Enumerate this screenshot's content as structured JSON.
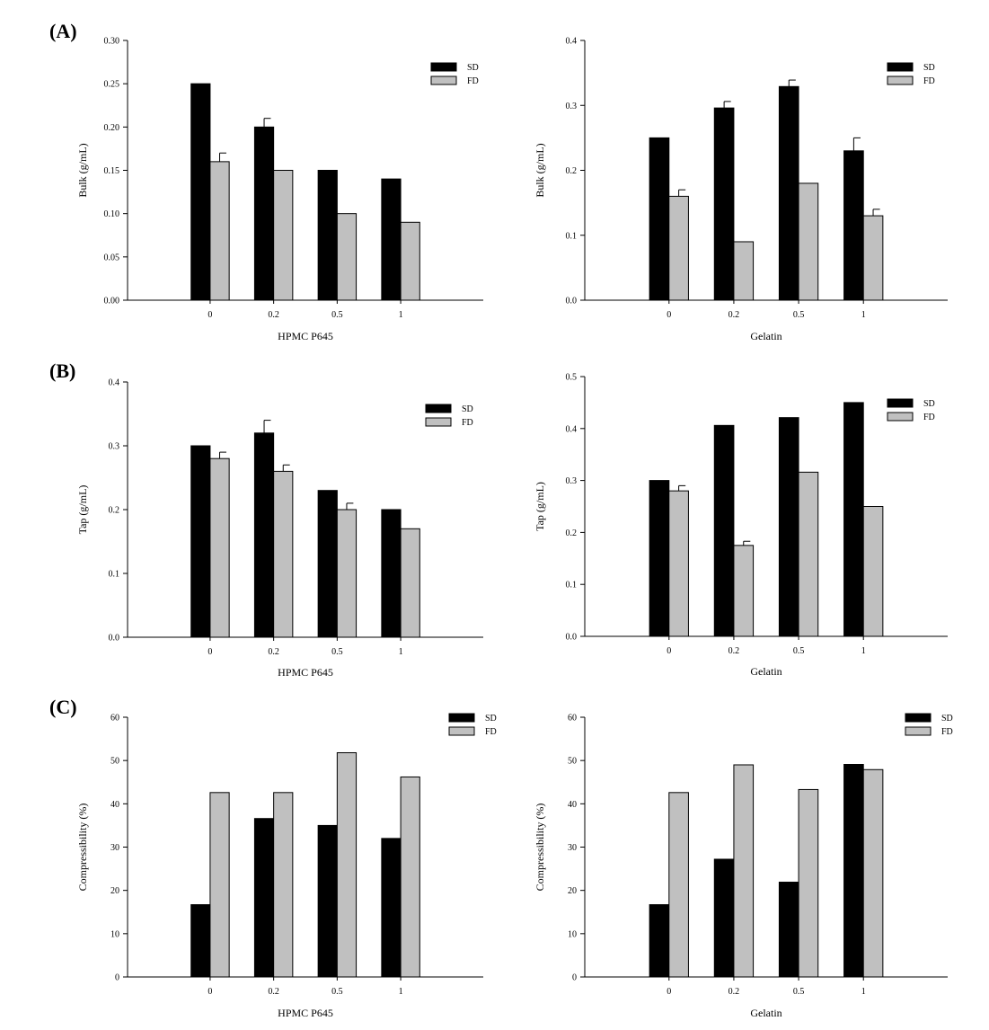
{
  "panel_labels": [
    "(A)",
    "(B)",
    "(C)"
  ],
  "legend": {
    "sd": "SD",
    "fd": "FD"
  },
  "colors": {
    "sd": "#000000",
    "fd": "#c0c0c0",
    "axis": "#000000"
  },
  "chart_data": [
    {
      "id": "A-hpmc",
      "type": "bar",
      "title": "",
      "xlabel": "HPMC P645",
      "ylabel": "Bulk (g/mL)",
      "categories": [
        "0",
        "0.2",
        "0.5",
        "1"
      ],
      "ylim": [
        0,
        0.3
      ],
      "yticks": [
        0,
        0.05,
        0.1,
        0.15,
        0.2,
        0.25,
        0.3
      ],
      "ydecimals": 2,
      "series": [
        {
          "name": "SD",
          "values": [
            0.25,
            0.2,
            0.15,
            0.14
          ],
          "errors": [
            0,
            0.01,
            0,
            0
          ]
        },
        {
          "name": "FD",
          "values": [
            0.16,
            0.15,
            0.1,
            0.09
          ],
          "errors": [
            0.01,
            0,
            0,
            0
          ]
        }
      ]
    },
    {
      "id": "A-gelatin",
      "type": "bar",
      "title": "",
      "xlabel": "Gelatin",
      "ylabel": "Bulk (g/mL)",
      "categories": [
        "0",
        "0.2",
        "0.5",
        "1"
      ],
      "ylim": [
        0,
        0.4
      ],
      "yticks": [
        0,
        0.1,
        0.2,
        0.3,
        0.4
      ],
      "ydecimals": 1,
      "series": [
        {
          "name": "SD",
          "values": [
            0.25,
            0.296,
            0.329,
            0.23
          ],
          "errors": [
            0,
            0.01,
            0.01,
            0.02
          ]
        },
        {
          "name": "FD",
          "values": [
            0.16,
            0.09,
            0.18,
            0.13
          ],
          "errors": [
            0.01,
            0,
            0,
            0.01
          ]
        }
      ]
    },
    {
      "id": "B-hpmc",
      "type": "bar",
      "title": "",
      "xlabel": "HPMC P645",
      "ylabel": "Tap (g/mL)",
      "categories": [
        "0",
        "0.2",
        "0.5",
        "1"
      ],
      "ylim": [
        0,
        0.4
      ],
      "yticks": [
        0,
        0.1,
        0.2,
        0.3,
        0.4
      ],
      "ydecimals": 1,
      "series": [
        {
          "name": "SD",
          "values": [
            0.3,
            0.32,
            0.23,
            0.2
          ],
          "errors": [
            0,
            0.02,
            0,
            0
          ]
        },
        {
          "name": "FD",
          "values": [
            0.28,
            0.26,
            0.2,
            0.17
          ],
          "errors": [
            0.01,
            0.01,
            0.01,
            0
          ]
        }
      ]
    },
    {
      "id": "B-gelatin",
      "type": "bar",
      "title": "",
      "xlabel": "Gelatin",
      "ylabel": "Tap (g/mL)",
      "categories": [
        "0",
        "0.2",
        "0.5",
        "1"
      ],
      "ylim": [
        0,
        0.5
      ],
      "yticks": [
        0,
        0.1,
        0.2,
        0.3,
        0.4,
        0.5
      ],
      "ydecimals": 1,
      "series": [
        {
          "name": "SD",
          "values": [
            0.3,
            0.406,
            0.421,
            0.45
          ],
          "errors": [
            0,
            0,
            0,
            0
          ]
        },
        {
          "name": "FD",
          "values": [
            0.28,
            0.175,
            0.316,
            0.25
          ],
          "errors": [
            0.01,
            0.008,
            0,
            0
          ]
        }
      ]
    },
    {
      "id": "C-hpmc",
      "type": "bar",
      "title": "",
      "xlabel": "HPMC P645",
      "ylabel": "Compressibility (%)",
      "categories": [
        "0",
        "0.2",
        "0.5",
        "1"
      ],
      "ylim": [
        0,
        60
      ],
      "yticks": [
        0,
        10,
        20,
        30,
        40,
        50,
        60
      ],
      "ydecimals": 0,
      "series": [
        {
          "name": "SD",
          "values": [
            16.7,
            36.6,
            35,
            32
          ],
          "errors": [
            0,
            0,
            0,
            0
          ]
        },
        {
          "name": "FD",
          "values": [
            42.6,
            42.6,
            51.8,
            46.2
          ],
          "errors": [
            0,
            0,
            0,
            0
          ]
        }
      ]
    },
    {
      "id": "C-gelatin",
      "type": "bar",
      "title": "",
      "xlabel": "Gelatin",
      "ylabel": "Compressibility (%)",
      "categories": [
        "0",
        "0.2",
        "0.5",
        "1"
      ],
      "ylim": [
        0,
        60
      ],
      "yticks": [
        0,
        10,
        20,
        30,
        40,
        50,
        60
      ],
      "ydecimals": 0,
      "series": [
        {
          "name": "SD",
          "values": [
            16.7,
            27.2,
            21.9,
            49.1
          ],
          "errors": [
            0,
            0,
            0,
            0
          ]
        },
        {
          "name": "FD",
          "values": [
            42.6,
            49,
            43.3,
            47.9
          ],
          "errors": [
            0,
            0,
            0,
            0
          ]
        }
      ]
    }
  ]
}
